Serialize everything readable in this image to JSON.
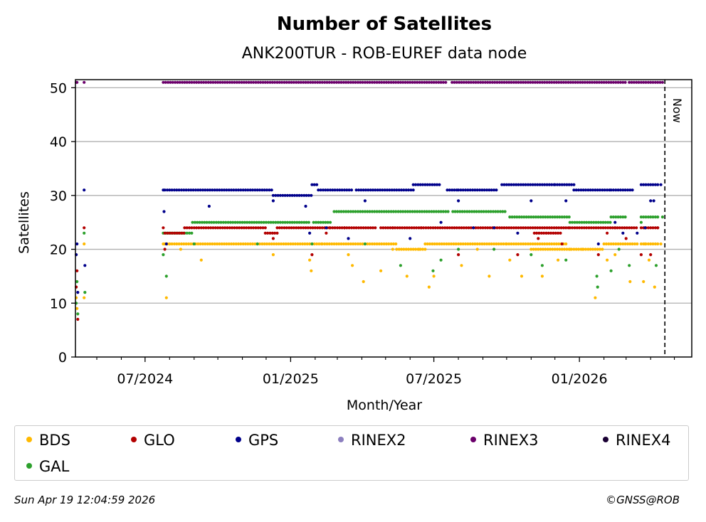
{
  "chart_data": {
    "type": "scatter",
    "title": "Number of Satellites",
    "subtitle": "ANK200TUR - ROB-EUREF data node",
    "xlabel": "Month/Year",
    "ylabel": "Satellites",
    "ylim": [
      0,
      51.5
    ],
    "xlim": [
      "2024-04-04",
      "2026-05-23"
    ],
    "x_ticks": [
      {
        "date": "2024-07-01",
        "label": "07/2024"
      },
      {
        "date": "2025-01-01",
        "label": "01/2025"
      },
      {
        "date": "2025-07-01",
        "label": "07/2025"
      },
      {
        "date": "2026-01-01",
        "label": "01/2026"
      }
    ],
    "minor_ticks": [
      "2024-05-01",
      "2024-06-01",
      "2024-08-01",
      "2024-09-01",
      "2024-10-01",
      "2024-11-01",
      "2024-12-01",
      "2025-02-01",
      "2025-03-01",
      "2025-04-01",
      "2025-05-01",
      "2025-06-01",
      "2025-08-01",
      "2025-09-01",
      "2025-10-01",
      "2025-11-01",
      "2025-12-01",
      "2026-02-01",
      "2026-03-01",
      "2026-04-01",
      "2026-05-01"
    ],
    "y_ticks": [
      0,
      10,
      20,
      30,
      40,
      50
    ],
    "grid": "y",
    "now": {
      "date": "2026-04-19",
      "label": "Now"
    },
    "series": [
      {
        "name": "BDS",
        "color": "#ffb900",
        "points": [
          [
            "2024-04-05",
            11
          ],
          [
            "2024-04-06",
            9
          ],
          [
            "2024-04-15",
            11
          ],
          [
            "2024-04-15",
            21
          ],
          [
            "2024-07-24",
            21
          ],
          [
            "2024-07-28",
            11
          ],
          [
            "2024-08-15",
            20
          ],
          [
            "2024-09-10",
            18
          ],
          [
            "2024-08-01",
            21
          ],
          [
            "2024-12-10",
            19
          ],
          [
            "2025-01-25",
            18
          ],
          [
            "2025-01-27",
            16
          ],
          [
            "2025-03-15",
            19
          ],
          [
            "2025-03-20",
            17
          ],
          [
            "2025-04-03",
            14
          ],
          [
            "2025-04-25",
            16
          ],
          [
            "2025-05-10",
            20
          ],
          [
            "2025-05-28",
            15
          ],
          [
            "2025-06-12",
            20
          ],
          [
            "2025-06-25",
            13
          ],
          [
            "2025-07-01",
            15
          ],
          [
            "2025-08-05",
            17
          ],
          [
            "2025-08-25",
            20
          ],
          [
            "2025-09-09",
            15
          ],
          [
            "2025-10-05",
            18
          ],
          [
            "2025-10-20",
            15
          ],
          [
            "2025-11-15",
            15
          ],
          [
            "2025-12-05",
            18
          ],
          [
            "2025-12-20",
            20
          ],
          [
            "2026-01-05",
            20
          ],
          [
            "2026-01-21",
            11
          ],
          [
            "2026-02-05",
            18
          ],
          [
            "2026-02-15",
            19
          ],
          [
            "2026-03-06",
            14
          ],
          [
            "2026-03-23",
            14
          ],
          [
            "2026-03-25",
            21
          ],
          [
            "2026-03-30",
            18
          ],
          [
            "2026-04-06",
            13
          ],
          [
            "2026-04-14",
            21
          ]
        ]
      },
      {
        "name": "GLO",
        "color": "#b30000",
        "points": [
          [
            "2024-04-05",
            13
          ],
          [
            "2024-04-06",
            16
          ],
          [
            "2024-04-07",
            7
          ],
          [
            "2024-04-15",
            24
          ],
          [
            "2024-07-24",
            24
          ],
          [
            "2024-07-26",
            20
          ],
          [
            "2024-12-10",
            22
          ],
          [
            "2025-01-28",
            19
          ],
          [
            "2025-02-15",
            23
          ],
          [
            "2025-05-10",
            24
          ],
          [
            "2025-06-15",
            24
          ],
          [
            "2025-08-01",
            19
          ],
          [
            "2025-10-15",
            19
          ],
          [
            "2025-11-10",
            22
          ],
          [
            "2025-12-10",
            21
          ],
          [
            "2026-01-25",
            19
          ],
          [
            "2026-02-05",
            23
          ],
          [
            "2026-03-01",
            22
          ],
          [
            "2026-03-20",
            19
          ],
          [
            "2026-03-25",
            24
          ],
          [
            "2026-04-01",
            19
          ],
          [
            "2026-04-10",
            24
          ]
        ]
      },
      {
        "name": "GPS",
        "color": "#00008b",
        "points": [
          [
            "2024-04-05",
            19
          ],
          [
            "2024-04-06",
            21
          ],
          [
            "2024-04-07",
            12
          ],
          [
            "2024-04-15",
            31
          ],
          [
            "2024-04-16",
            17
          ],
          [
            "2024-07-24",
            31
          ],
          [
            "2024-07-25",
            27
          ],
          [
            "2024-07-28",
            21
          ],
          [
            "2024-09-20",
            28
          ],
          [
            "2024-12-10",
            29
          ],
          [
            "2025-01-20",
            28
          ],
          [
            "2025-01-25",
            23
          ],
          [
            "2025-02-15",
            24
          ],
          [
            "2025-03-15",
            22
          ],
          [
            "2025-04-05",
            29
          ],
          [
            "2025-06-01",
            22
          ],
          [
            "2025-07-10",
            25
          ],
          [
            "2025-08-01",
            29
          ],
          [
            "2025-08-20",
            24
          ],
          [
            "2025-09-15",
            24
          ],
          [
            "2025-10-15",
            23
          ],
          [
            "2025-11-01",
            29
          ],
          [
            "2025-12-15",
            29
          ],
          [
            "2026-01-25",
            21
          ],
          [
            "2026-02-15",
            25
          ],
          [
            "2026-02-25",
            23
          ],
          [
            "2026-03-15",
            23
          ],
          [
            "2026-03-25",
            24
          ],
          [
            "2026-04-01",
            29
          ],
          [
            "2026-04-05",
            29
          ],
          [
            "2026-04-14",
            32
          ]
        ]
      },
      {
        "name": "RINEX2",
        "color": "#8c7fbf",
        "points": []
      },
      {
        "name": "RINEX3",
        "color": "#6b006b",
        "points": [
          [
            "2024-04-05",
            51
          ],
          [
            "2024-04-06",
            51
          ],
          [
            "2024-04-15",
            51
          ],
          [
            "2026-04-16",
            51
          ]
        ]
      },
      {
        "name": "RINEX4",
        "color": "#1a0033",
        "points": []
      },
      {
        "name": "GAL",
        "color": "#2ca02c",
        "points": [
          [
            "2024-04-05",
            10
          ],
          [
            "2024-04-06",
            14
          ],
          [
            "2024-04-07",
            8
          ],
          [
            "2024-04-15",
            23
          ],
          [
            "2024-04-16",
            12
          ],
          [
            "2024-07-24",
            19
          ],
          [
            "2024-07-28",
            15
          ],
          [
            "2024-09-01",
            21
          ],
          [
            "2024-11-20",
            21
          ],
          [
            "2025-01-28",
            21
          ],
          [
            "2025-04-05",
            21
          ],
          [
            "2025-05-20",
            17
          ],
          [
            "2025-06-30",
            16
          ],
          [
            "2025-07-10",
            18
          ],
          [
            "2025-08-01",
            20
          ],
          [
            "2025-09-15",
            20
          ],
          [
            "2025-11-01",
            19
          ],
          [
            "2025-11-15",
            17
          ],
          [
            "2025-12-15",
            18
          ],
          [
            "2026-01-23",
            15
          ],
          [
            "2026-01-24",
            13
          ],
          [
            "2026-02-10",
            16
          ],
          [
            "2026-02-20",
            20
          ],
          [
            "2026-03-05",
            17
          ],
          [
            "2026-03-20",
            25
          ],
          [
            "2026-04-08",
            17
          ],
          [
            "2026-04-16",
            26
          ]
        ]
      }
    ],
    "dense_runs": [
      {
        "series": "RINEX3",
        "runs": [
          [
            "2024-07-24",
            "2025-04-01",
            51
          ],
          [
            "2025-04-02",
            "2025-07-18",
            51
          ],
          [
            "2025-07-24",
            "2026-02-28",
            51
          ],
          [
            "2026-03-05",
            "2026-04-14",
            51
          ]
        ]
      },
      {
        "series": "GPS",
        "runs": [
          [
            "2024-07-26",
            "2024-12-10",
            31
          ],
          [
            "2024-12-10",
            "2025-01-28",
            30
          ],
          [
            "2025-01-28",
            "2025-02-05",
            32
          ],
          [
            "2025-02-05",
            "2025-03-20",
            31
          ],
          [
            "2025-03-25",
            "2025-06-05",
            31
          ],
          [
            "2025-06-05",
            "2025-07-10",
            32
          ],
          [
            "2025-07-18",
            "2025-08-01",
            31
          ],
          [
            "2025-08-01",
            "2025-09-20",
            31
          ],
          [
            "2025-09-25",
            "2025-11-30",
            32
          ],
          [
            "2025-12-01",
            "2025-12-25",
            32
          ],
          [
            "2025-12-25",
            "2026-02-10",
            31
          ],
          [
            "2026-02-10",
            "2026-03-10",
            31
          ],
          [
            "2026-03-20",
            "2026-04-10",
            32
          ]
        ]
      },
      {
        "series": "GAL",
        "runs": [
          [
            "2024-07-24",
            "2024-08-30",
            23
          ],
          [
            "2024-08-30",
            "2025-01-25",
            25
          ],
          [
            "2025-01-30",
            "2025-02-20",
            25
          ],
          [
            "2025-02-25",
            "2025-07-20",
            27
          ],
          [
            "2025-07-25",
            "2025-09-30",
            27
          ],
          [
            "2025-10-05",
            "2025-12-20",
            26
          ],
          [
            "2025-12-20",
            "2026-02-10",
            25
          ],
          [
            "2026-02-10",
            "2026-03-01",
            26
          ],
          [
            "2026-03-20",
            "2026-04-10",
            26
          ]
        ]
      },
      {
        "series": "GLO",
        "runs": [
          [
            "2024-07-26",
            "2024-08-20",
            23
          ],
          [
            "2024-08-20",
            "2024-11-30",
            24
          ],
          [
            "2024-11-30",
            "2024-12-15",
            23
          ],
          [
            "2024-12-15",
            "2025-02-20",
            24
          ],
          [
            "2025-02-20",
            "2025-03-10",
            24
          ],
          [
            "2025-03-10",
            "2025-04-20",
            24
          ],
          [
            "2025-04-25",
            "2025-09-30",
            24
          ],
          [
            "2025-10-01",
            "2025-12-20",
            24
          ],
          [
            "2025-11-05",
            "2025-12-10",
            23
          ],
          [
            "2025-12-20",
            "2026-02-15",
            24
          ],
          [
            "2026-02-15",
            "2026-03-15",
            24
          ],
          [
            "2026-03-20",
            "2026-04-10",
            24
          ]
        ]
      },
      {
        "series": "BDS",
        "runs": [
          [
            "2024-07-26",
            "2025-02-10",
            21
          ],
          [
            "2025-02-10",
            "2025-05-15",
            21
          ],
          [
            "2025-05-15",
            "2025-06-20",
            20
          ],
          [
            "2025-06-20",
            "2025-09-30",
            21
          ],
          [
            "2025-10-01",
            "2025-12-15",
            21
          ],
          [
            "2025-11-01",
            "2026-01-30",
            20
          ],
          [
            "2026-02-01",
            "2026-03-15",
            21
          ],
          [
            "2026-03-20",
            "2026-04-10",
            21
          ]
        ]
      }
    ],
    "legend": {
      "placement": "bottom",
      "entries": [
        "BDS",
        "GLO",
        "GPS",
        "RINEX2",
        "RINEX3",
        "RINEX4",
        "GAL"
      ]
    }
  },
  "footer": {
    "timestamp": "Sun Apr 19 12:04:59 2026",
    "credit": "©GNSS@ROB"
  }
}
